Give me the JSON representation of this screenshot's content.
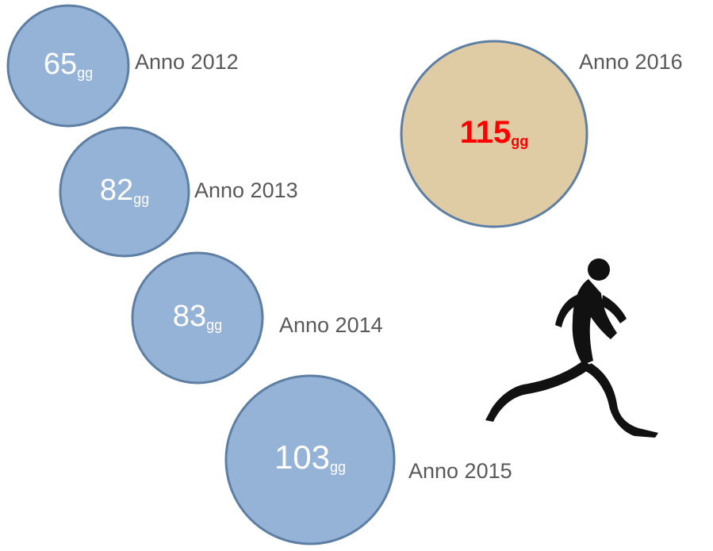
{
  "items": [
    {
      "label": "Anno 2012",
      "value": 65,
      "unit": "gg",
      "fill": "#95b3d7",
      "text_color": "#ffffff",
      "bold": false
    },
    {
      "label": "Anno 2013",
      "value": 82,
      "unit": "gg",
      "fill": "#95b3d7",
      "text_color": "#ffffff",
      "bold": false
    },
    {
      "label": "Anno 2014",
      "value": 83,
      "unit": "gg",
      "fill": "#95b3d7",
      "text_color": "#ffffff",
      "bold": false
    },
    {
      "label": "Anno 2015",
      "value": 103,
      "unit": "gg",
      "fill": "#95b3d7",
      "text_color": "#ffffff",
      "bold": false
    },
    {
      "label": "Anno 2016",
      "value": 115,
      "unit": "gg",
      "fill": "#dfcca4",
      "text_color": "#ff0000",
      "bold": true
    }
  ]
}
